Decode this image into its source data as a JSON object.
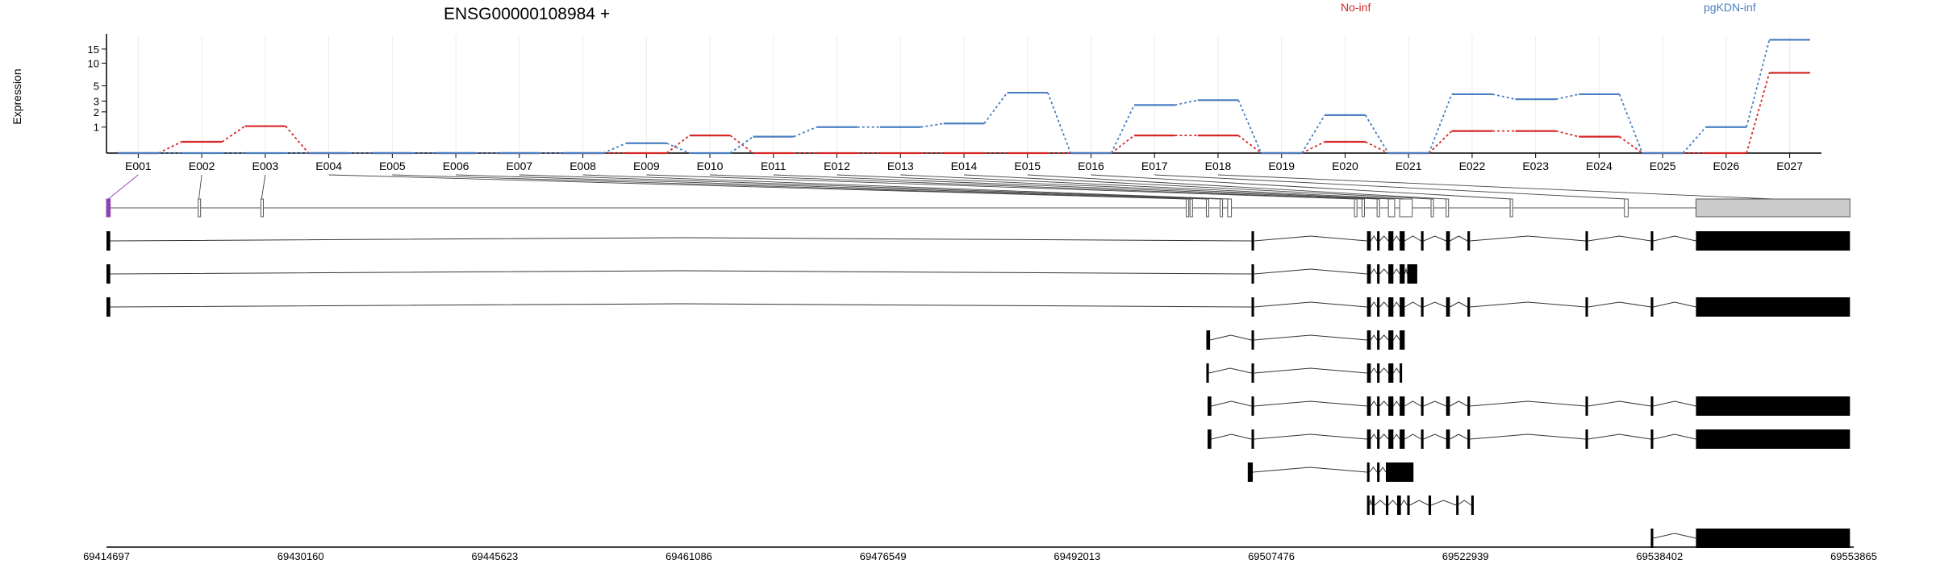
{
  "chart_data": {
    "type": "line",
    "title": "ENSG00000108984 +",
    "ylabel": "Expression",
    "y_scale": "log",
    "y_ticks": [
      1,
      2,
      3,
      5,
      10,
      15
    ],
    "ylim": [
      0,
      22
    ],
    "grid": true,
    "legend_placement": "top-right",
    "categories": [
      "E001",
      "E002",
      "E003",
      "E004",
      "E005",
      "E006",
      "E007",
      "E008",
      "E009",
      "E010",
      "E011",
      "E012",
      "E013",
      "E014",
      "E015",
      "E016",
      "E017",
      "E018",
      "E019",
      "E020",
      "E021",
      "E022",
      "E023",
      "E024",
      "E025",
      "E026",
      "E027"
    ],
    "series": [
      {
        "name": "No-inf",
        "color": "#d62728",
        "values": [
          0,
          0.35,
          1.05,
          0,
          0,
          0,
          0,
          0,
          0,
          0.6,
          0,
          0,
          0,
          0,
          0,
          0,
          0.6,
          0.6,
          0,
          0.35,
          0,
          0.8,
          0.8,
          0.55,
          0,
          0,
          7.5
        ]
      },
      {
        "name": "pgKDN-inf",
        "color": "#4a7fc0",
        "values": [
          0,
          0,
          0,
          0,
          0,
          0,
          0,
          0,
          0.3,
          0,
          0.55,
          1.0,
          1.0,
          1.2,
          4.0,
          0,
          2.6,
          3.1,
          0,
          1.75,
          0,
          3.8,
          3.2,
          3.8,
          0,
          1.0,
          19.5
        ]
      }
    ],
    "genomic_ticks": [
      "69414697",
      "69430160",
      "69445623",
      "69461086",
      "69476549",
      "69492013",
      "69507476",
      "69522939",
      "69538402",
      "69553865"
    ],
    "genomic_range": [
      69414697,
      69553865
    ],
    "exons_bp": [
      [
        69414697,
        69414997
      ],
      [
        69422000,
        69422100
      ],
      [
        69427000,
        69427100
      ],
      [
        69500700,
        69500900
      ],
      [
        69501000,
        69501200
      ],
      [
        69502300,
        69502400
      ],
      [
        69503400,
        69503500
      ],
      [
        69504000,
        69504300
      ],
      [
        69514100,
        69514300
      ],
      [
        69514700,
        69514800
      ],
      [
        69515900,
        69516100
      ],
      [
        69516800,
        69517300
      ],
      [
        69517700,
        69518700
      ],
      [
        69520200,
        69520300
      ],
      [
        69521400,
        69521500
      ],
      [
        69526500,
        69526700
      ],
      [
        69535600,
        69535900
      ],
      [
        69541300,
        69553565
      ]
    ],
    "transcripts_bp": [
      [
        [
          69414697,
          69414997
        ],
        [
          69505900,
          69506100
        ],
        [
          69515100,
          69515400
        ],
        [
          69515900,
          69516100
        ],
        [
          69516800,
          69517200
        ],
        [
          69517700,
          69518100
        ],
        [
          69519400,
          69519600
        ],
        [
          69521400,
          69521700
        ],
        [
          69523100,
          69523300
        ],
        [
          69532500,
          69532700
        ],
        [
          69537700,
          69537900
        ],
        [
          69541300,
          69553565
        ]
      ],
      [
        [
          69414697,
          69414997
        ],
        [
          69505900,
          69506100
        ],
        [
          69515100,
          69515400
        ],
        [
          69515900,
          69516100
        ],
        [
          69516800,
          69517200
        ],
        [
          69517700,
          69518100
        ],
        [
          69518300,
          69519100
        ]
      ],
      [
        [
          69414697,
          69414997
        ],
        [
          69505900,
          69506100
        ],
        [
          69515100,
          69515400
        ],
        [
          69515900,
          69516100
        ],
        [
          69516800,
          69517200
        ],
        [
          69517700,
          69518100
        ],
        [
          69519400,
          69519600
        ],
        [
          69521400,
          69521700
        ],
        [
          69523100,
          69523300
        ],
        [
          69532500,
          69532700
        ],
        [
          69537700,
          69537900
        ],
        [
          69541300,
          69553565
        ]
      ],
      [
        [
          69502300,
          69502600
        ],
        [
          69505900,
          69506100
        ],
        [
          69515100,
          69515400
        ],
        [
          69515900,
          69516100
        ],
        [
          69516800,
          69517200
        ],
        [
          69517700,
          69518100
        ]
      ],
      [
        [
          69502300,
          69502500
        ],
        [
          69505900,
          69506100
        ],
        [
          69515100,
          69515400
        ],
        [
          69515900,
          69516100
        ],
        [
          69516800,
          69517200
        ],
        [
          69517700,
          69517800
        ]
      ],
      [
        [
          69502400,
          69502700
        ],
        [
          69505900,
          69506100
        ],
        [
          69515100,
          69515400
        ],
        [
          69515900,
          69516100
        ],
        [
          69516800,
          69517200
        ],
        [
          69517700,
          69518100
        ],
        [
          69519400,
          69519600
        ],
        [
          69521400,
          69521700
        ],
        [
          69523100,
          69523300
        ],
        [
          69532500,
          69532700
        ],
        [
          69537700,
          69537900
        ],
        [
          69541300,
          69553565
        ]
      ],
      [
        [
          69502400,
          69502700
        ],
        [
          69505900,
          69506100
        ],
        [
          69515100,
          69515400
        ],
        [
          69515900,
          69516100
        ],
        [
          69516800,
          69517200
        ],
        [
          69517700,
          69518100
        ],
        [
          69519400,
          69519600
        ],
        [
          69521400,
          69521700
        ],
        [
          69523100,
          69523300
        ],
        [
          69532500,
          69532700
        ],
        [
          69537700,
          69537900
        ],
        [
          69541300,
          69553565
        ]
      ],
      [
        [
          69505600,
          69506000
        ],
        [
          69515100,
          69515300
        ],
        [
          69515900,
          69516100
        ],
        [
          69516600,
          69518800
        ]
      ],
      [
        [
          69515100,
          69515300
        ],
        [
          69515500,
          69515700
        ],
        [
          69516600,
          69516800
        ],
        [
          69517500,
          69517800
        ],
        [
          69518300,
          69518500
        ],
        [
          69520000,
          69520200
        ],
        [
          69522200,
          69522300
        ],
        [
          69523400,
          69523600
        ]
      ],
      [
        [
          69537700,
          69537900
        ],
        [
          69541300,
          69553565
        ]
      ]
    ]
  }
}
